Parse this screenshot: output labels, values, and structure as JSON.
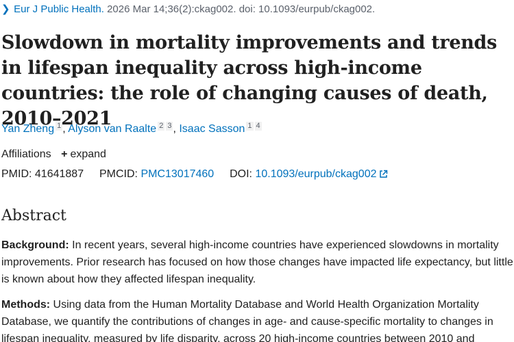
{
  "citation": {
    "journal": "Eur J Public Health.",
    "details": "2026 Mar 14;36(2):ckag002. doi: 10.1093/eurpub/ckag002."
  },
  "title": "Slowdown in mortality improvements and trends in lifespan inequality across high-income countries: the role of changing causes of death, 2010–2021",
  "authors": [
    {
      "name": "Yan Zheng",
      "affiliations": [
        "1"
      ]
    },
    {
      "name": "Alyson van Raalte",
      "affiliations": [
        "2",
        "3"
      ]
    },
    {
      "name": "Isaac Sasson",
      "affiliations": [
        "1",
        "4"
      ]
    }
  ],
  "affiliations": {
    "label": "Affiliations",
    "expand_label": "expand"
  },
  "ids": {
    "pmid_label": "PMID:",
    "pmid": "41641887",
    "pmcid_label": "PMCID:",
    "pmcid": "PMC13017460",
    "doi_label": "DOI:",
    "doi": "10.1093/eurpub/ckag002"
  },
  "abstract": {
    "heading": "Abstract",
    "background_label": "Background:",
    "background_text": " In recent years, several high-income countries have experienced slowdowns in mortality improvements. Prior research has focused on how those changes have impacted life expectancy, but little is known about how they affected lifespan inequality.",
    "methods_label": "Methods:",
    "methods_text": " Using data from the Human Mortality Database and World Health Organization Mortality Database, we quantify the contributions of changes in age- and cause-specific mortality to changes in lifespan inequality, measured by life disparity, across 20 high-income countries between 2010 and"
  },
  "colors": {
    "link": "#0071bc",
    "text": "#212121",
    "muted": "#5b616b"
  },
  "icons": {
    "citation_chevron": "chevron-right-icon",
    "expand": "plus-icon",
    "external_link": "external-link-icon"
  }
}
